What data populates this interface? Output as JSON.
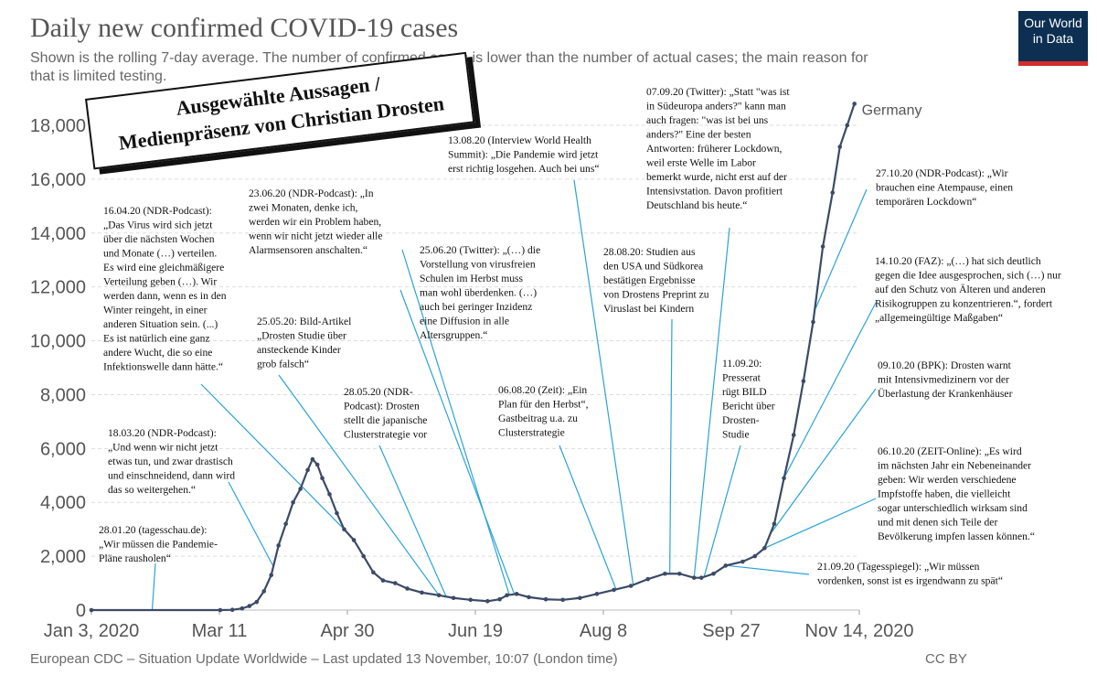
{
  "header": {
    "title": "Daily new confirmed COVID-19 cases",
    "subtitle": "Shown is the rolling 7-day average. The number of confirmed cases is lower than the number of actual cases; the main reason for that is limited testing.",
    "logo_line1": "Our World",
    "logo_line2": "in Data"
  },
  "footer": {
    "source": "European CDC – Situation Update Worldwide – Last updated 13 November, 10:07 (London time)",
    "license": "CC BY"
  },
  "stamp": {
    "line1": "Ausgewählte Aussagen /",
    "line2": "Medienpräsenz von Christian Drosten"
  },
  "colors": {
    "series": "#3c4a66",
    "annotation_line": "#2ba3d6",
    "grid": "#dddddd"
  },
  "chart_data": {
    "type": "line",
    "title": "Daily new confirmed COVID-19 cases",
    "x_start": "2020-01-03",
    "x_end": "2020-11-14",
    "xticks": [
      "Jan 3, 2020",
      "Mar 11",
      "Apr 30",
      "Jun 19",
      "Aug 8",
      "Sep 27",
      "Nov 14, 2020"
    ],
    "ylim": [
      0,
      18000
    ],
    "yticks": [
      "0",
      "2,000",
      "4,000",
      "6,000",
      "8,000",
      "10,000",
      "12,000",
      "14,000",
      "16,000",
      "18,000"
    ],
    "grid": "horizontal dashed",
    "series": [
      {
        "name": "Germany",
        "points": [
          [
            "2020-01-03",
            0
          ],
          [
            "2020-02-25",
            0
          ],
          [
            "2020-03-01",
            10
          ],
          [
            "2020-03-05",
            60
          ],
          [
            "2020-03-08",
            150
          ],
          [
            "2020-03-11",
            300
          ],
          [
            "2020-03-14",
            700
          ],
          [
            "2020-03-17",
            1300
          ],
          [
            "2020-03-20",
            2400
          ],
          [
            "2020-03-23",
            3200
          ],
          [
            "2020-03-26",
            4000
          ],
          [
            "2020-03-29",
            4500
          ],
          [
            "2020-04-01",
            5200
          ],
          [
            "2020-04-03",
            5600
          ],
          [
            "2020-04-05",
            5400
          ],
          [
            "2020-04-07",
            4900
          ],
          [
            "2020-04-10",
            4300
          ],
          [
            "2020-04-13",
            3600
          ],
          [
            "2020-04-16",
            3000
          ],
          [
            "2020-04-20",
            2600
          ],
          [
            "2020-04-24",
            2000
          ],
          [
            "2020-04-28",
            1400
          ],
          [
            "2020-05-02",
            1100
          ],
          [
            "2020-05-07",
            1000
          ],
          [
            "2020-05-12",
            800
          ],
          [
            "2020-05-18",
            650
          ],
          [
            "2020-05-25",
            550
          ],
          [
            "2020-05-31",
            450
          ],
          [
            "2020-06-07",
            380
          ],
          [
            "2020-06-14",
            330
          ],
          [
            "2020-06-19",
            400
          ],
          [
            "2020-06-22",
            550
          ],
          [
            "2020-06-26",
            600
          ],
          [
            "2020-07-01",
            480
          ],
          [
            "2020-07-08",
            400
          ],
          [
            "2020-07-15",
            380
          ],
          [
            "2020-07-22",
            450
          ],
          [
            "2020-07-29",
            600
          ],
          [
            "2020-08-05",
            750
          ],
          [
            "2020-08-12",
            900
          ],
          [
            "2020-08-19",
            1150
          ],
          [
            "2020-08-26",
            1350
          ],
          [
            "2020-09-01",
            1350
          ],
          [
            "2020-09-07",
            1200
          ],
          [
            "2020-09-10",
            1200
          ],
          [
            "2020-09-15",
            1350
          ],
          [
            "2020-09-20",
            1650
          ],
          [
            "2020-09-27",
            1800
          ],
          [
            "2020-10-02",
            2000
          ],
          [
            "2020-10-06",
            2300
          ],
          [
            "2020-10-10",
            3200
          ],
          [
            "2020-10-14",
            4900
          ],
          [
            "2020-10-18",
            6500
          ],
          [
            "2020-10-22",
            8500
          ],
          [
            "2020-10-26",
            10700
          ],
          [
            "2020-10-30",
            13500
          ],
          [
            "2020-11-03",
            15500
          ],
          [
            "2020-11-06",
            17200
          ],
          [
            "2020-11-09",
            18000
          ],
          [
            "2020-11-12",
            18800
          ]
        ]
      }
    ],
    "annotations": [
      {
        "text": "28.01.20 (tagesschau.de):\n„Wir müssen die Pandemie-\nPläne rausholen“",
        "target": [
          "2020-01-28",
          0
        ]
      },
      {
        "text": "18.03.20 (NDR-Podcast):\n„Und wenn wir nicht jetzt\netwas tun, und zwar drastisch\nund einschneidend, dann wird\ndas so weitergehen.“",
        "target": [
          "2020-03-18",
          1600
        ]
      },
      {
        "text": "16.04.20 (NDR-Podcast):\n„Das Virus wird sich jetzt\nüber die nächsten Wochen\nund Monate (…) verteilen.\nEs wird eine gleichmäßigere\nVerteilung geben (…). Wir\nwerden dann, wenn es in den\nWinter reingeht, in einer\nanderen Situation sein. (...)\nEs ist natürlich eine ganz\nandere Wucht, die so eine\nInfektionswelle dann hätte.“",
        "target": [
          "2020-04-16",
          3000
        ]
      },
      {
        "text": "23.06.20 (NDR-Podcast): „In\nzwei Monaten, denke ich,\nwerden wir ein Problem haben,\nwenn wir nicht jetzt wieder alle\nAlarmsensoren anschalten.“",
        "target": [
          "2020-06-23",
          560
        ]
      },
      {
        "text": "25.05.20: Bild-Artikel\n„Drosten Studie über\nansteckende Kinder\ngrob falsch“",
        "target": [
          "2020-05-25",
          550
        ]
      },
      {
        "text": "28.05.20 (NDR-\nPodcast): Drosten\nstellt die japanische\nClusterstrategie vor",
        "target": [
          "2020-05-28",
          500
        ]
      },
      {
        "text": "25.06.20 (Twitter): „(…) die\nVorstellung von virusfreien\nSchulen im Herbst muss\nman wohl überdenken. (…)\nauch bei geringer Inzidenz\neine Diffusion in alle\nAltersgruppen.“",
        "target": [
          "2020-06-25",
          600
        ]
      },
      {
        "text": "13.08.20 (Interview World Health\nSummit): „Die Pandemie wird jetzt\nerst richtig losgehen. Auch bei uns“",
        "target": [
          "2020-08-13",
          900
        ]
      },
      {
        "text": "06.08.20 (Zeit): „Ein\nPlan für den Herbst“,\nGastbeitrag u.a. zu\nClusterstrategie",
        "target": [
          "2020-08-06",
          750
        ]
      },
      {
        "text": "28.08.20: Studien aus\nden USA und Südkorea\nbestätigen Ergebnisse\nvon Drostens Preprint zu\nViruslast bei Kindern",
        "target": [
          "2020-08-28",
          1350
        ]
      },
      {
        "text": "07.09.20 (Twitter): „Statt \"was ist\nin Südeuropa anders?\" kann man\nauch fragen: \"was ist bei uns\nanders?\" Eine der besten\nAntworten: früherer Lockdown,\nweil erste Welle im Labor\nbemerkt wurde, nicht erst auf der\nIntensivstation. Davon profitiert\nDeutschland bis heute.“",
        "target": [
          "2020-09-07",
          1200
        ]
      },
      {
        "text": "11.09.20:\nPresserat\nrügt BILD\nBericht über\nDrosten-\nStudie",
        "target": [
          "2020-09-11",
          1200
        ]
      },
      {
        "text": "21.09.20 (Tagesspiegel): „Wir müssen\nvordenken, sonst ist es irgendwann zu spät“",
        "target": [
          "2020-09-21",
          1650
        ]
      },
      {
        "text": "06.10.20 (ZEIT-Online): „Es wird\nim nächsten Jahr ein Nebeneinander\ngeben: Wir werden verschiedene\nImpfstoffe haben, die vielleicht\nsogar unterschiedlich wirksam sind\nund mit denen sich Teile der\nBevölkerung impfen lassen können.“",
        "target": [
          "2020-10-06",
          2300
        ]
      },
      {
        "text": "09.10.20 (BPK): Drosten warnt\nmit Intensivmedizinern vor der\nÜberlastung der Krankenhäuser",
        "target": [
          "2020-10-09",
          2900
        ]
      },
      {
        "text": "14.10.20 (FAZ): „(…) hat sich deutlich\ngegen die Idee ausgesprochen, sich (…) nur\nauf den Schutz von Älteren und anderen\nRisikogruppen zu konzentrieren.“, fordert\n„allgemeingültige Maßgaben“",
        "target": [
          "2020-10-14",
          4900
        ]
      },
      {
        "text": "27.10.20 (NDR-Podcast): „Wir\nbrauchen eine Atempause, einen\ntemporären Lockdown“",
        "target": [
          "2020-10-27",
          11200
        ]
      }
    ]
  }
}
